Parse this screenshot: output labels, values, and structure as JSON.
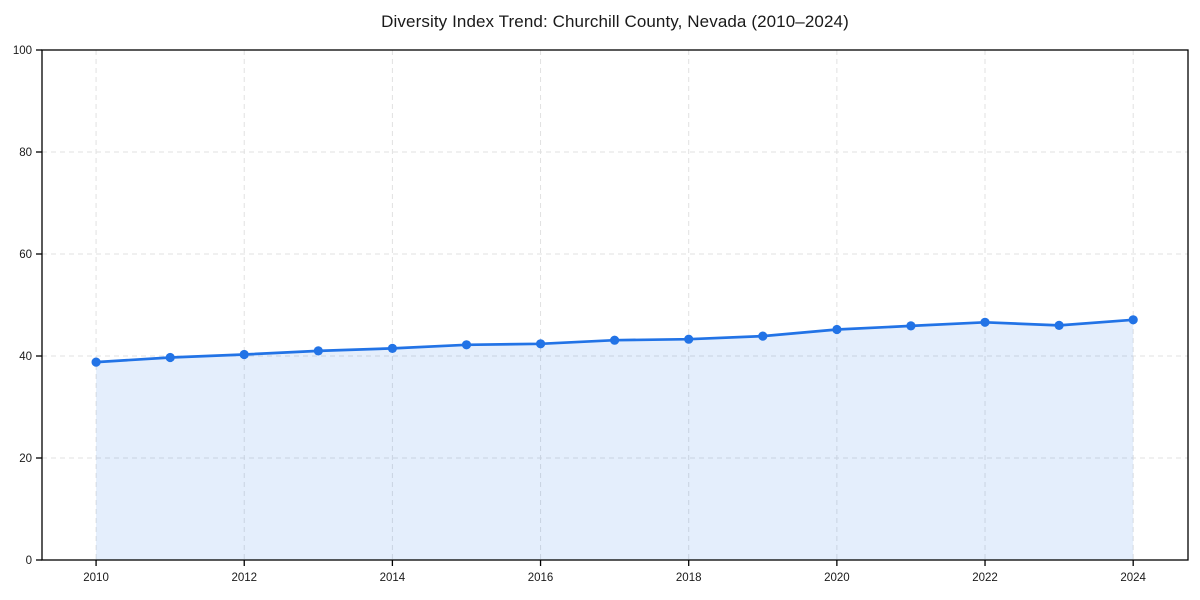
{
  "chart": {
    "title": "Diversity Index Trend: Churchill County, Nevada (2010–2024)"
  },
  "chart_data": {
    "type": "area",
    "title": "Diversity Index Trend: Churchill County, Nevada (2010–2024)",
    "xlabel": "",
    "ylabel": "",
    "x": [
      2010,
      2011,
      2012,
      2013,
      2014,
      2015,
      2016,
      2017,
      2018,
      2019,
      2020,
      2021,
      2022,
      2023,
      2024
    ],
    "series": [
      {
        "name": "Diversity Index",
        "values": [
          38.8,
          39.7,
          40.3,
          41.0,
          41.5,
          42.2,
          42.4,
          43.1,
          43.3,
          43.9,
          45.2,
          45.9,
          46.6,
          46.0,
          47.1
        ]
      }
    ],
    "ylim": [
      0,
      100
    ],
    "xlim": [
      2009.27,
      2024.74
    ],
    "yticks": [
      0,
      20,
      40,
      60,
      80,
      100
    ],
    "xticks": [
      2010,
      2012,
      2014,
      2016,
      2018,
      2020,
      2022,
      2024
    ],
    "grid": true,
    "legend": "none",
    "line_color": "#2273e6",
    "marker_color": "#2273e6",
    "fill_color": "rgba(34, 115, 230, 0.12)",
    "frame_color": "#000000",
    "grid_color": "#e1e1e1"
  }
}
